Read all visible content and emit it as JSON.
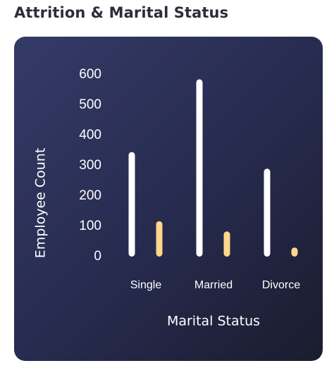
{
  "page": {
    "title": "Attrition & Marital Status"
  },
  "colors": {
    "card_gradient": [
      "#353b68",
      "#262a4d",
      "#1b1c2e"
    ],
    "bar_primary": "#ffffff",
    "bar_secondary": "#ffd68a"
  },
  "chart_data": {
    "type": "bar",
    "title": "Attrition & Marital Status",
    "xlabel": "Marital Status",
    "ylabel": "Employee Count",
    "categories": [
      "Single",
      "Married",
      "Divorce"
    ],
    "series": [
      {
        "color": "#ffffff",
        "values": [
          345,
          585,
          290
        ]
      },
      {
        "color": "#ffd68a",
        "values": [
          117,
          83,
          30
        ]
      }
    ],
    "yticks": [
      0,
      100,
      200,
      300,
      400,
      500,
      600
    ],
    "ylim": [
      0,
      600
    ],
    "grid": false,
    "legend": "none"
  }
}
